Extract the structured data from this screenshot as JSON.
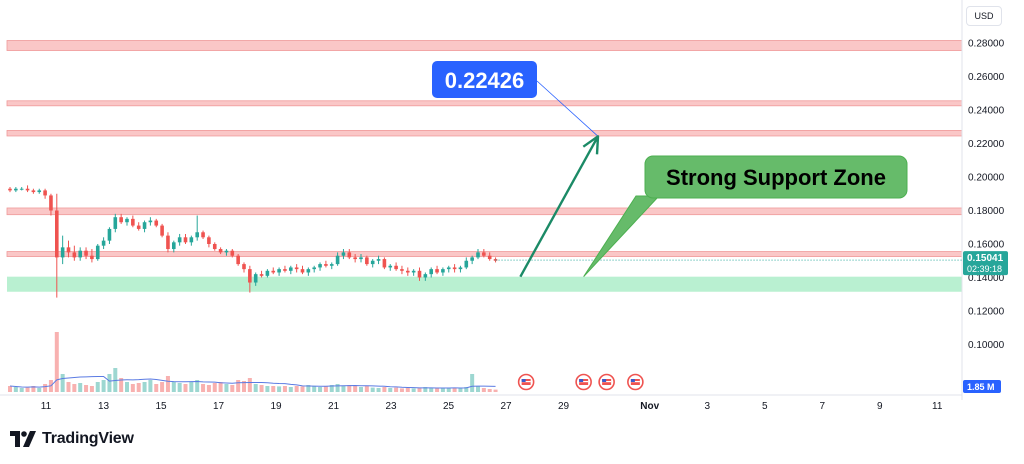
{
  "currency_label": "USD",
  "brand": {
    "name": "TradingView"
  },
  "colors": {
    "up": "#26a69a",
    "down": "#ef5350",
    "resistance_zone": "#f8b4b4",
    "resistance_border": "#ef9a9a",
    "support_zone": "#a8ecc6",
    "target_label": "#2962ff",
    "support_label": "#66bb6a",
    "arrow": "#1b8a66",
    "ma_line": "#5b7be3"
  },
  "chart_data": {
    "type": "candlestick",
    "y_axis": {
      "range": [
        0.08,
        0.285
      ],
      "ticks": [
        "0.28000",
        "0.26000",
        "0.24000",
        "0.22000",
        "0.20000",
        "0.18000",
        "0.16000",
        "0.14000",
        "0.12000",
        "0.10000"
      ]
    },
    "x_axis": {
      "ticks": [
        {
          "label": "11",
          "day": 11
        },
        {
          "label": "13",
          "day": 13
        },
        {
          "label": "15",
          "day": 15
        },
        {
          "label": "17",
          "day": 17
        },
        {
          "label": "19",
          "day": 19
        },
        {
          "label": "21",
          "day": 21
        },
        {
          "label": "23",
          "day": 23
        },
        {
          "label": "25",
          "day": 25
        },
        {
          "label": "27",
          "day": 27
        },
        {
          "label": "29",
          "day": 29
        },
        {
          "label": "Nov",
          "day": 32
        },
        {
          "label": "3",
          "day": 34
        },
        {
          "label": "5",
          "day": 36
        },
        {
          "label": "7",
          "day": 38
        },
        {
          "label": "9",
          "day": 40
        },
        {
          "label": "11",
          "day": 42
        }
      ]
    },
    "last_price": {
      "value": "0.15041",
      "countdown": "02:39:18",
      "price": 0.1504
    },
    "volume_label": "1.85 M",
    "zones": {
      "resistance": [
        [
          0.2755,
          0.2815
        ],
        [
          0.2425,
          0.2455
        ],
        [
          0.2245,
          0.2278
        ],
        [
          0.1775,
          0.1815
        ],
        [
          0.1525,
          0.1555
        ]
      ],
      "support": [
        [
          0.1315,
          0.1405
        ]
      ]
    },
    "annotations": {
      "target_label": "0.22426",
      "target_value": 0.2243,
      "target_day": 30.2,
      "support_label": "Strong Support Zone",
      "arrow_from": {
        "day": 27.5,
        "value": 0.1405
      },
      "arrow_to": {
        "day": 30.2,
        "value": 0.2243
      },
      "label_tail_day": 29.7
    },
    "candles_ohlc": [
      [
        0.193,
        0.194,
        0.191,
        0.192
      ],
      [
        0.192,
        0.194,
        0.191,
        0.193
      ],
      [
        0.193,
        0.194,
        0.192,
        0.193
      ],
      [
        0.193,
        0.195,
        0.191,
        0.192
      ],
      [
        0.192,
        0.193,
        0.19,
        0.191
      ],
      [
        0.191,
        0.193,
        0.19,
        0.192
      ],
      [
        0.192,
        0.193,
        0.187,
        0.189
      ],
      [
        0.189,
        0.19,
        0.177,
        0.18
      ],
      [
        0.18,
        0.19,
        0.128,
        0.152
      ],
      [
        0.152,
        0.165,
        0.148,
        0.158
      ],
      [
        0.158,
        0.162,
        0.152,
        0.155
      ],
      [
        0.155,
        0.159,
        0.15,
        0.152
      ],
      [
        0.152,
        0.158,
        0.15,
        0.156
      ],
      [
        0.156,
        0.158,
        0.151,
        0.153
      ],
      [
        0.153,
        0.157,
        0.149,
        0.151
      ],
      [
        0.151,
        0.16,
        0.15,
        0.159
      ],
      [
        0.159,
        0.164,
        0.157,
        0.162
      ],
      [
        0.162,
        0.17,
        0.16,
        0.169
      ],
      [
        0.169,
        0.178,
        0.167,
        0.176
      ],
      [
        0.176,
        0.178,
        0.172,
        0.173
      ],
      [
        0.173,
        0.176,
        0.171,
        0.175
      ],
      [
        0.175,
        0.177,
        0.17,
        0.171
      ],
      [
        0.171,
        0.173,
        0.168,
        0.169
      ],
      [
        0.169,
        0.174,
        0.167,
        0.173
      ],
      [
        0.173,
        0.176,
        0.171,
        0.174
      ],
      [
        0.174,
        0.175,
        0.17,
        0.171
      ],
      [
        0.171,
        0.172,
        0.164,
        0.165
      ],
      [
        0.165,
        0.167,
        0.155,
        0.157
      ],
      [
        0.157,
        0.162,
        0.155,
        0.161
      ],
      [
        0.161,
        0.166,
        0.159,
        0.164
      ],
      [
        0.164,
        0.166,
        0.16,
        0.161
      ],
      [
        0.161,
        0.165,
        0.159,
        0.164
      ],
      [
        0.164,
        0.177,
        0.162,
        0.167
      ],
      [
        0.167,
        0.168,
        0.163,
        0.164
      ],
      [
        0.164,
        0.165,
        0.158,
        0.16
      ],
      [
        0.16,
        0.161,
        0.156,
        0.157
      ],
      [
        0.157,
        0.158,
        0.154,
        0.155
      ],
      [
        0.155,
        0.157,
        0.153,
        0.156
      ],
      [
        0.156,
        0.157,
        0.152,
        0.153
      ],
      [
        0.153,
        0.154,
        0.147,
        0.148
      ],
      [
        0.148,
        0.149,
        0.143,
        0.145
      ],
      [
        0.145,
        0.147,
        0.131,
        0.137
      ],
      [
        0.137,
        0.143,
        0.135,
        0.142
      ],
      [
        0.142,
        0.144,
        0.14,
        0.141
      ],
      [
        0.141,
        0.145,
        0.14,
        0.144
      ],
      [
        0.144,
        0.146,
        0.142,
        0.143
      ],
      [
        0.143,
        0.146,
        0.141,
        0.145
      ],
      [
        0.145,
        0.147,
        0.143,
        0.144
      ],
      [
        0.144,
        0.147,
        0.142,
        0.146
      ],
      [
        0.146,
        0.148,
        0.143,
        0.145
      ],
      [
        0.145,
        0.147,
        0.142,
        0.143
      ],
      [
        0.143,
        0.146,
        0.141,
        0.145
      ],
      [
        0.145,
        0.147,
        0.143,
        0.146
      ],
      [
        0.146,
        0.149,
        0.144,
        0.148
      ],
      [
        0.148,
        0.15,
        0.146,
        0.147
      ],
      [
        0.147,
        0.149,
        0.145,
        0.148
      ],
      [
        0.148,
        0.155,
        0.147,
        0.153
      ],
      [
        0.153,
        0.157,
        0.151,
        0.155
      ],
      [
        0.155,
        0.157,
        0.151,
        0.152
      ],
      [
        0.152,
        0.154,
        0.149,
        0.151
      ],
      [
        0.151,
        0.154,
        0.149,
        0.152
      ],
      [
        0.152,
        0.153,
        0.147,
        0.148
      ],
      [
        0.148,
        0.151,
        0.146,
        0.15
      ],
      [
        0.15,
        0.153,
        0.148,
        0.151
      ],
      [
        0.151,
        0.152,
        0.145,
        0.146
      ],
      [
        0.146,
        0.148,
        0.144,
        0.147
      ],
      [
        0.147,
        0.149,
        0.144,
        0.145
      ],
      [
        0.145,
        0.147,
        0.142,
        0.144
      ],
      [
        0.144,
        0.146,
        0.141,
        0.143
      ],
      [
        0.143,
        0.145,
        0.141,
        0.144
      ],
      [
        0.144,
        0.146,
        0.138,
        0.14
      ],
      [
        0.14,
        0.143,
        0.138,
        0.142
      ],
      [
        0.142,
        0.146,
        0.14,
        0.145
      ],
      [
        0.145,
        0.147,
        0.142,
        0.143
      ],
      [
        0.143,
        0.146,
        0.141,
        0.145
      ],
      [
        0.145,
        0.147,
        0.143,
        0.146
      ],
      [
        0.146,
        0.148,
        0.143,
        0.145
      ],
      [
        0.145,
        0.147,
        0.143,
        0.146
      ],
      [
        0.146,
        0.152,
        0.145,
        0.15
      ],
      [
        0.15,
        0.153,
        0.148,
        0.152
      ],
      [
        0.152,
        0.157,
        0.151,
        0.155
      ],
      [
        0.155,
        0.157,
        0.152,
        0.153
      ],
      [
        0.153,
        0.155,
        0.15,
        0.151
      ],
      [
        0.151,
        0.152,
        0.149,
        0.15
      ]
    ],
    "volumes": [
      0.3,
      0.25,
      0.2,
      0.22,
      0.3,
      0.2,
      0.4,
      0.6,
      3.0,
      0.9,
      0.5,
      0.4,
      0.45,
      0.35,
      0.3,
      0.5,
      0.6,
      0.9,
      1.2,
      0.7,
      0.5,
      0.4,
      0.45,
      0.5,
      0.6,
      0.4,
      0.5,
      0.8,
      0.5,
      0.45,
      0.4,
      0.5,
      0.6,
      0.4,
      0.35,
      0.45,
      0.5,
      0.4,
      0.35,
      0.6,
      0.55,
      0.7,
      0.4,
      0.35,
      0.3,
      0.3,
      0.28,
      0.3,
      0.25,
      0.3,
      0.28,
      0.35,
      0.3,
      0.25,
      0.3,
      0.35,
      0.4,
      0.3,
      0.35,
      0.3,
      0.25,
      0.3,
      0.22,
      0.2,
      0.25,
      0.2,
      0.22,
      0.18,
      0.2,
      0.18,
      0.2,
      0.25,
      0.2,
      0.18,
      0.2,
      0.22,
      0.2,
      0.18,
      0.25,
      0.9,
      0.3,
      0.2,
      0.15,
      0.12
    ],
    "event_days": [
      27.7,
      29.7,
      30.5,
      31.5
    ]
  }
}
